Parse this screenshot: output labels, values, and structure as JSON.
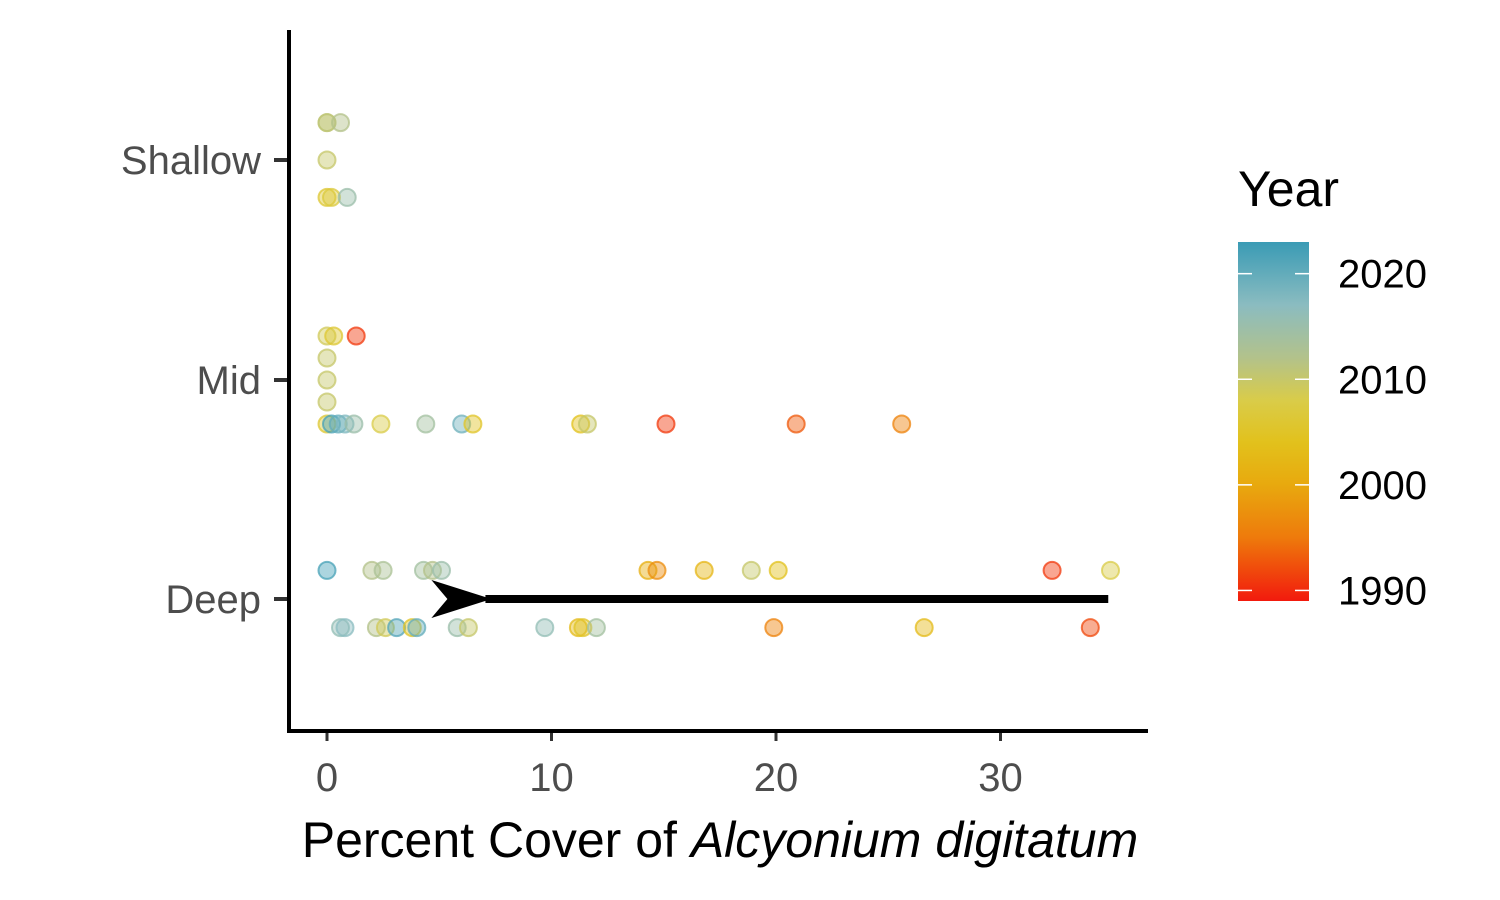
{
  "chart_data": {
    "type": "scatter",
    "title": "",
    "xlabel": {
      "prefix": "Percent Cover of ",
      "species": "Alcyonium digitatum"
    },
    "xlim": [
      -1.7,
      36.5
    ],
    "x_ticks": [
      0,
      10,
      20,
      30
    ],
    "categories": [
      "Deep",
      "Mid",
      "Shallow"
    ],
    "y_ticks_top_to_bottom": [
      "Shallow",
      "Mid",
      "Deep"
    ],
    "grid": false,
    "legend": {
      "title": "Year",
      "placement": "right",
      "type": "colorbar",
      "range": [
        1989,
        2023
      ],
      "ticks": [
        1990,
        2000,
        2010,
        2020
      ],
      "colors": [
        {
          "year": 1989,
          "color": "#f21a0d"
        },
        {
          "year": 1995,
          "color": "#ee7a0c"
        },
        {
          "year": 2000,
          "color": "#e8a90e"
        },
        {
          "year": 2004,
          "color": "#e2c11c"
        },
        {
          "year": 2008,
          "color": "#d9cc49"
        },
        {
          "year": 2012,
          "color": "#b3c28a"
        },
        {
          "year": 2017,
          "color": "#8bbcc0"
        },
        {
          "year": 2023,
          "color": "#3a9bb5"
        }
      ]
    },
    "annotation": {
      "type": "arrow",
      "category": "Deep",
      "x_from": 34.8,
      "x_to": 6.7,
      "color": "#000000"
    },
    "points": [
      {
        "x": 0.0,
        "y": "Shallow",
        "jitter": 0.17,
        "year": 2010
      },
      {
        "x": 0.0,
        "y": "Shallow",
        "jitter": 0.17,
        "year": 2011
      },
      {
        "x": 0.6,
        "y": "Shallow",
        "jitter": 0.17,
        "year": 2012
      },
      {
        "x": 0.0,
        "y": "Shallow",
        "jitter": 0.0,
        "year": 2010
      },
      {
        "x": 0.0,
        "y": "Shallow",
        "jitter": -0.17,
        "year": 2006
      },
      {
        "x": 0.2,
        "y": "Shallow",
        "jitter": -0.17,
        "year": 2007
      },
      {
        "x": 0.9,
        "y": "Shallow",
        "jitter": -0.17,
        "year": 2015
      },
      {
        "x": 0.0,
        "y": "Mid",
        "jitter": 0.2,
        "year": 2009
      },
      {
        "x": 0.3,
        "y": "Mid",
        "jitter": 0.2,
        "year": 2006
      },
      {
        "x": 1.3,
        "y": "Mid",
        "jitter": 0.2,
        "year": 1991
      },
      {
        "x": 0.0,
        "y": "Mid",
        "jitter": 0.1,
        "year": 2010
      },
      {
        "x": 0.0,
        "y": "Mid",
        "jitter": 0.0,
        "year": 2010
      },
      {
        "x": 0.0,
        "y": "Mid",
        "jitter": -0.1,
        "year": 2010
      },
      {
        "x": 0.0,
        "y": "Mid",
        "jitter": -0.2,
        "year": 2006
      },
      {
        "x": 0.2,
        "y": "Mid",
        "jitter": -0.2,
        "year": 2022
      },
      {
        "x": 0.5,
        "y": "Mid",
        "jitter": -0.2,
        "year": 2020
      },
      {
        "x": 0.8,
        "y": "Mid",
        "jitter": -0.2,
        "year": 2018
      },
      {
        "x": 1.2,
        "y": "Mid",
        "jitter": -0.2,
        "year": 2015
      },
      {
        "x": 2.4,
        "y": "Mid",
        "jitter": -0.2,
        "year": 2008
      },
      {
        "x": 4.4,
        "y": "Mid",
        "jitter": -0.2,
        "year": 2014
      },
      {
        "x": 6.0,
        "y": "Mid",
        "jitter": -0.2,
        "year": 2019
      },
      {
        "x": 6.5,
        "y": "Mid",
        "jitter": -0.2,
        "year": 2005
      },
      {
        "x": 11.3,
        "y": "Mid",
        "jitter": -0.2,
        "year": 2004
      },
      {
        "x": 11.6,
        "y": "Mid",
        "jitter": -0.2,
        "year": 2010
      },
      {
        "x": 15.1,
        "y": "Mid",
        "jitter": -0.2,
        "year": 1991
      },
      {
        "x": 20.9,
        "y": "Mid",
        "jitter": -0.2,
        "year": 1993
      },
      {
        "x": 25.6,
        "y": "Mid",
        "jitter": -0.2,
        "year": 1996
      },
      {
        "x": 0.0,
        "y": "Deep",
        "jitter": 0.13,
        "year": 2022
      },
      {
        "x": 2.0,
        "y": "Deep",
        "jitter": 0.13,
        "year": 2012
      },
      {
        "x": 2.5,
        "y": "Deep",
        "jitter": 0.13,
        "year": 2013
      },
      {
        "x": 4.3,
        "y": "Deep",
        "jitter": 0.13,
        "year": 2014
      },
      {
        "x": 4.7,
        "y": "Deep",
        "jitter": 0.13,
        "year": 2012
      },
      {
        "x": 5.1,
        "y": "Deep",
        "jitter": 0.13,
        "year": 2015
      },
      {
        "x": 14.3,
        "y": "Deep",
        "jitter": 0.13,
        "year": 2001
      },
      {
        "x": 14.7,
        "y": "Deep",
        "jitter": 0.13,
        "year": 1997
      },
      {
        "x": 16.8,
        "y": "Deep",
        "jitter": 0.13,
        "year": 2002
      },
      {
        "x": 18.9,
        "y": "Deep",
        "jitter": 0.13,
        "year": 2010
      },
      {
        "x": 20.1,
        "y": "Deep",
        "jitter": 0.13,
        "year": 2004
      },
      {
        "x": 32.3,
        "y": "Deep",
        "jitter": 0.13,
        "year": 1991
      },
      {
        "x": 34.9,
        "y": "Deep",
        "jitter": 0.13,
        "year": 2008
      },
      {
        "x": 0.6,
        "y": "Deep",
        "jitter": -0.13,
        "year": 2016
      },
      {
        "x": 0.8,
        "y": "Deep",
        "jitter": -0.13,
        "year": 2017
      },
      {
        "x": 2.2,
        "y": "Deep",
        "jitter": -0.13,
        "year": 2012
      },
      {
        "x": 2.6,
        "y": "Deep",
        "jitter": -0.13,
        "year": 2009
      },
      {
        "x": 3.1,
        "y": "Deep",
        "jitter": -0.13,
        "year": 2021
      },
      {
        "x": 3.8,
        "y": "Deep",
        "jitter": -0.13,
        "year": 2005
      },
      {
        "x": 4.0,
        "y": "Deep",
        "jitter": -0.13,
        "year": 2020
      },
      {
        "x": 5.8,
        "y": "Deep",
        "jitter": -0.13,
        "year": 2015
      },
      {
        "x": 6.3,
        "y": "Deep",
        "jitter": -0.13,
        "year": 2010
      },
      {
        "x": 9.7,
        "y": "Deep",
        "jitter": -0.13,
        "year": 2016
      },
      {
        "x": 11.2,
        "y": "Deep",
        "jitter": -0.13,
        "year": 2003
      },
      {
        "x": 11.4,
        "y": "Deep",
        "jitter": -0.13,
        "year": 2005
      },
      {
        "x": 12.0,
        "y": "Deep",
        "jitter": -0.13,
        "year": 2014
      },
      {
        "x": 19.9,
        "y": "Deep",
        "jitter": -0.13,
        "year": 1996
      },
      {
        "x": 26.6,
        "y": "Deep",
        "jitter": -0.13,
        "year": 2003
      },
      {
        "x": 34.0,
        "y": "Deep",
        "jitter": -0.13,
        "year": 1992
      }
    ]
  }
}
